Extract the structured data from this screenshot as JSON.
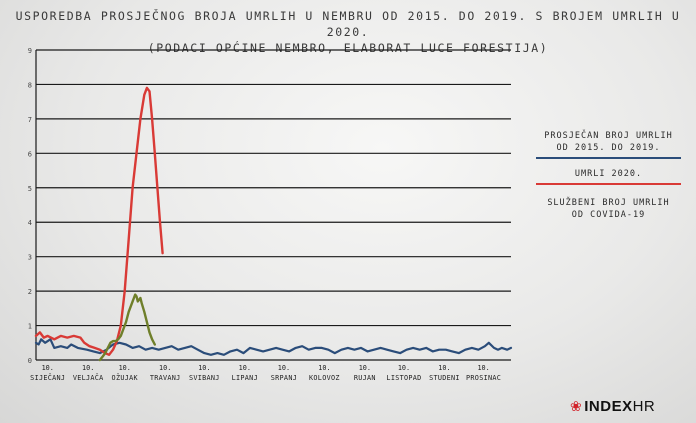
{
  "chart_data": {
    "type": "line",
    "title_line1": "USPOREDBA PROSJEČNOG BROJA UMRLIH U NEMBRU OD 2015. DO 2019. S BROJEM UMRLIH U 2020.",
    "title_line2": "(PODACI OPĆINE NEMBRO, ELABORAT LUCE FORESTIJA)",
    "ylim": [
      0,
      9
    ],
    "yticks": [
      "0",
      "1",
      "2",
      "3",
      "4",
      "5",
      "6",
      "7",
      "8",
      "9"
    ],
    "x_ticks": [
      {
        "day": "10.",
        "month": "SIJEČANJ"
      },
      {
        "day": "10.",
        "month": "VELJAČA"
      },
      {
        "day": "10.",
        "month": "OŽUJAK"
      },
      {
        "day": "10.",
        "month": "TRAVANJ"
      },
      {
        "day": "10.",
        "month": "SVIBANJ"
      },
      {
        "day": "10.",
        "month": "LIPANJ"
      },
      {
        "day": "10.",
        "month": "SRPANJ"
      },
      {
        "day": "10.",
        "month": "KOLOVOZ"
      },
      {
        "day": "10.",
        "month": "RUJAN"
      },
      {
        "day": "10.",
        "month": "LISTOPAD"
      },
      {
        "day": "10.",
        "month": "STUDENI"
      },
      {
        "day": "10.",
        "month": "PROSINAC"
      }
    ],
    "series": [
      {
        "name": "PROSJEČAN BROJ UMRLIH OD 2015. DO 2019.",
        "color": "#2b4d7a",
        "points": [
          [
            1,
            0.5
          ],
          [
            3,
            0.45
          ],
          [
            5,
            0.6
          ],
          [
            8,
            0.5
          ],
          [
            12,
            0.6
          ],
          [
            15,
            0.35
          ],
          [
            20,
            0.4
          ],
          [
            25,
            0.35
          ],
          [
            28,
            0.45
          ],
          [
            33,
            0.35
          ],
          [
            40,
            0.3
          ],
          [
            45,
            0.25
          ],
          [
            50,
            0.2
          ],
          [
            55,
            0.3
          ],
          [
            60,
            0.45
          ],
          [
            65,
            0.5
          ],
          [
            70,
            0.45
          ],
          [
            75,
            0.35
          ],
          [
            80,
            0.4
          ],
          [
            85,
            0.3
          ],
          [
            90,
            0.35
          ],
          [
            95,
            0.3
          ],
          [
            100,
            0.35
          ],
          [
            105,
            0.4
          ],
          [
            110,
            0.3
          ],
          [
            115,
            0.35
          ],
          [
            120,
            0.4
          ],
          [
            125,
            0.3
          ],
          [
            130,
            0.2
          ],
          [
            135,
            0.15
          ],
          [
            140,
            0.2
          ],
          [
            145,
            0.15
          ],
          [
            150,
            0.25
          ],
          [
            155,
            0.3
          ],
          [
            160,
            0.2
          ],
          [
            165,
            0.35
          ],
          [
            170,
            0.3
          ],
          [
            175,
            0.25
          ],
          [
            180,
            0.3
          ],
          [
            185,
            0.35
          ],
          [
            190,
            0.3
          ],
          [
            195,
            0.25
          ],
          [
            200,
            0.35
          ],
          [
            205,
            0.4
          ],
          [
            210,
            0.3
          ],
          [
            215,
            0.35
          ],
          [
            220,
            0.35
          ],
          [
            225,
            0.3
          ],
          [
            230,
            0.2
          ],
          [
            235,
            0.3
          ],
          [
            240,
            0.35
          ],
          [
            245,
            0.3
          ],
          [
            250,
            0.35
          ],
          [
            255,
            0.25
          ],
          [
            260,
            0.3
          ],
          [
            265,
            0.35
          ],
          [
            270,
            0.3
          ],
          [
            275,
            0.25
          ],
          [
            280,
            0.2
          ],
          [
            285,
            0.3
          ],
          [
            290,
            0.35
          ],
          [
            295,
            0.3
          ],
          [
            300,
            0.35
          ],
          [
            305,
            0.25
          ],
          [
            310,
            0.3
          ],
          [
            315,
            0.3
          ],
          [
            320,
            0.25
          ],
          [
            325,
            0.2
          ],
          [
            330,
            0.3
          ],
          [
            335,
            0.35
          ],
          [
            340,
            0.3
          ],
          [
            345,
            0.4
          ],
          [
            348,
            0.5
          ],
          [
            352,
            0.35
          ],
          [
            355,
            0.3
          ],
          [
            358,
            0.35
          ],
          [
            362,
            0.3
          ],
          [
            365,
            0.35
          ]
        ]
      },
      {
        "name": "UMRLI 2020.",
        "color": "#d93a36",
        "points": [
          [
            1,
            0.7
          ],
          [
            4,
            0.8
          ],
          [
            7,
            0.65
          ],
          [
            10,
            0.7
          ],
          [
            15,
            0.6
          ],
          [
            20,
            0.7
          ],
          [
            25,
            0.65
          ],
          [
            30,
            0.7
          ],
          [
            35,
            0.65
          ],
          [
            38,
            0.5
          ],
          [
            42,
            0.4
          ],
          [
            46,
            0.35
          ],
          [
            50,
            0.3
          ],
          [
            54,
            0.2
          ],
          [
            57,
            0.15
          ],
          [
            60,
            0.3
          ],
          [
            63,
            0.55
          ],
          [
            66,
            1.0
          ],
          [
            69,
            2.0
          ],
          [
            72,
            3.5
          ],
          [
            75,
            5.0
          ],
          [
            78,
            6.0
          ],
          [
            81,
            7.0
          ],
          [
            84,
            7.7
          ],
          [
            86,
            7.9
          ],
          [
            88,
            7.8
          ],
          [
            90,
            7.0
          ],
          [
            92,
            6.0
          ],
          [
            94,
            5.0
          ],
          [
            96,
            4.0
          ],
          [
            98,
            3.1
          ]
        ]
      },
      {
        "name": "SLUŽBENI BROJ UMRLIH OD COVIDA-19",
        "color": "#6f7f2a",
        "points": [
          [
            50,
            0.0
          ],
          [
            52,
            0.1
          ],
          [
            54,
            0.2
          ],
          [
            56,
            0.35
          ],
          [
            58,
            0.5
          ],
          [
            60,
            0.55
          ],
          [
            62,
            0.55
          ],
          [
            64,
            0.6
          ],
          [
            66,
            0.7
          ],
          [
            68,
            0.9
          ],
          [
            70,
            1.1
          ],
          [
            72,
            1.4
          ],
          [
            74,
            1.6
          ],
          [
            75,
            1.7
          ],
          [
            76,
            1.8
          ],
          [
            77,
            1.9
          ],
          [
            78,
            1.85
          ],
          [
            79,
            1.7
          ],
          [
            80,
            1.75
          ],
          [
            81,
            1.8
          ],
          [
            82,
            1.65
          ],
          [
            84,
            1.4
          ],
          [
            86,
            1.1
          ],
          [
            88,
            0.8
          ],
          [
            90,
            0.6
          ],
          [
            92,
            0.45
          ]
        ]
      }
    ]
  },
  "legend": [
    {
      "line1": "PROSJEČAN BROJ UMRLIH",
      "line2": "OD 2015. DO 2019.",
      "color": "#2b4d7a"
    },
    {
      "line1": "UMRLI 2020.",
      "line2": "",
      "color": "#d93a36"
    },
    {
      "line1": "SLUŽBENI BROJ UMRLIH",
      "line2": "OD COVIDA-19",
      "color": "#6f7f2a"
    }
  ],
  "brand": {
    "part1": "INDEX",
    "part2": "HR"
  }
}
